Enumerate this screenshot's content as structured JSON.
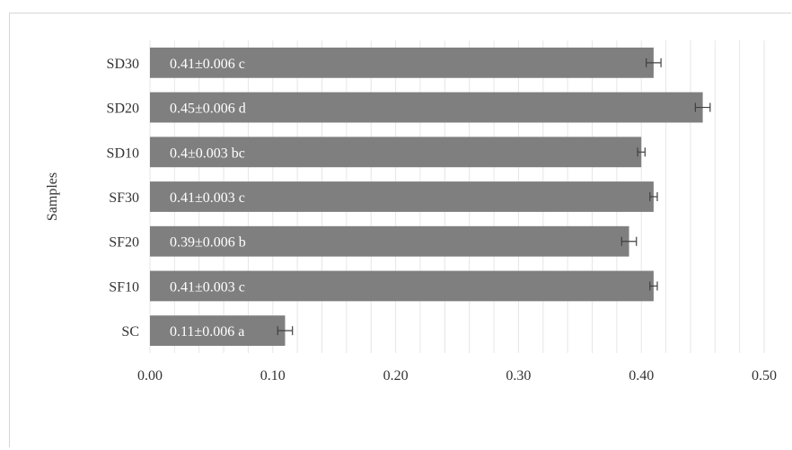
{
  "chart_data": {
    "type": "bar",
    "orientation": "horizontal",
    "categories": [
      "SC",
      "SF10",
      "SF20",
      "SF30",
      "SD10",
      "SD20",
      "SD30"
    ],
    "values": [
      0.11,
      0.41,
      0.39,
      0.41,
      0.4,
      0.45,
      0.41
    ],
    "errors": [
      0.006,
      0.003,
      0.006,
      0.003,
      0.003,
      0.006,
      0.006
    ],
    "data_labels": [
      "0.11±0.006 a",
      "0.41±0.003 c",
      "0.39±0.006 b",
      "0.41±0.003 c",
      "0.4±0.003 bc",
      "0.45±0.006 d",
      "0.41±0.006 c"
    ],
    "x_ticks": [
      "0.00",
      "0.10",
      "0.20",
      "0.30",
      "0.40",
      "0.50"
    ],
    "xlim": [
      0,
      0.5
    ],
    "xlabel": "",
    "ylabel": "Samples",
    "title": "",
    "grid": "vertical minor gridlines",
    "colors": {
      "bar": "#7f7f7f",
      "grid": "#e6e6e6",
      "error_bar": "#404040"
    }
  }
}
